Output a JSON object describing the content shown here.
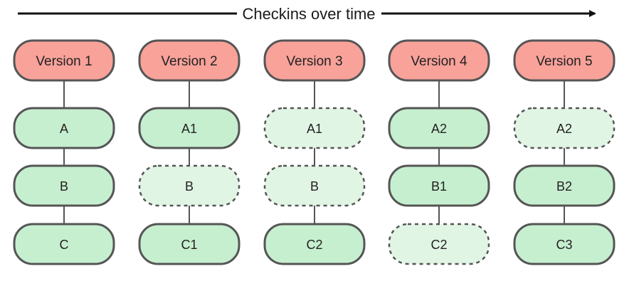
{
  "timeline": {
    "label": "Checkins over time"
  },
  "colors": {
    "version_fill": "#f8a29a",
    "file_fill": "#c6efcf",
    "unchanged_fill": "#e1f5e5",
    "stroke": "#555555"
  },
  "versions": [
    {
      "label": "Version 1",
      "files": [
        {
          "label": "A",
          "changed": true
        },
        {
          "label": "B",
          "changed": true
        },
        {
          "label": "C",
          "changed": true
        }
      ]
    },
    {
      "label": "Version 2",
      "files": [
        {
          "label": "A1",
          "changed": true
        },
        {
          "label": "B",
          "changed": false
        },
        {
          "label": "C1",
          "changed": true
        }
      ]
    },
    {
      "label": "Version 3",
      "files": [
        {
          "label": "A1",
          "changed": false
        },
        {
          "label": "B",
          "changed": false
        },
        {
          "label": "C2",
          "changed": true
        }
      ]
    },
    {
      "label": "Version 4",
      "files": [
        {
          "label": "A2",
          "changed": true
        },
        {
          "label": "B1",
          "changed": true
        },
        {
          "label": "C2",
          "changed": false
        }
      ]
    },
    {
      "label": "Version 5",
      "files": [
        {
          "label": "A2",
          "changed": false
        },
        {
          "label": "B2",
          "changed": true
        },
        {
          "label": "C3",
          "changed": true
        }
      ]
    }
  ]
}
